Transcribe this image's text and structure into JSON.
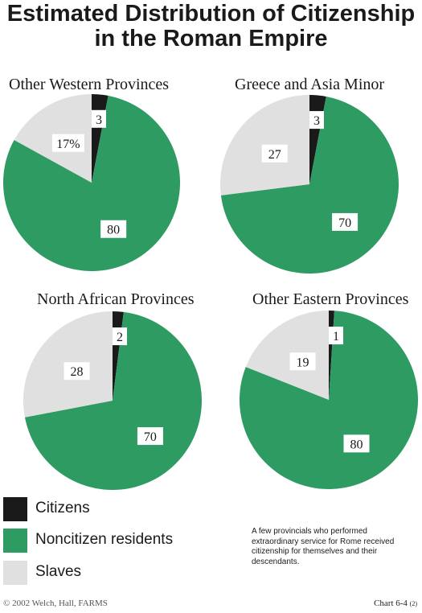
{
  "title": {
    "line1": "Estimated Distribution of Citizenship",
    "line2": "in the Roman Empire"
  },
  "colors": {
    "citizens": "#1a1a1a",
    "noncitizens": "#2e9b62",
    "slaves": "#e0e0e0"
  },
  "chart_data": [
    {
      "type": "pie",
      "title": "Other Western Provinces",
      "labels": [
        "Citizens",
        "Noncitizen residents",
        "Slaves"
      ],
      "values": [
        3,
        80,
        17
      ],
      "data_labels": [
        "3",
        "80",
        "17%"
      ]
    },
    {
      "type": "pie",
      "title": "Greece and Asia Minor",
      "labels": [
        "Citizens",
        "Noncitizen residents",
        "Slaves"
      ],
      "values": [
        3,
        70,
        27
      ],
      "data_labels": [
        "3",
        "70",
        "27"
      ]
    },
    {
      "type": "pie",
      "title": "North African Provinces",
      "labels": [
        "Citizens",
        "Noncitizen residents",
        "Slaves"
      ],
      "values": [
        2,
        70,
        28
      ],
      "data_labels": [
        "2",
        "70",
        "28"
      ]
    },
    {
      "type": "pie",
      "title": "Other Eastern Provinces",
      "labels": [
        "Citizens",
        "Noncitizen residents",
        "Slaves"
      ],
      "values": [
        1,
        80,
        19
      ],
      "data_labels": [
        "1",
        "80",
        "19"
      ]
    }
  ],
  "legend": {
    "items": [
      {
        "label": "Citizens",
        "color": "#1a1a1a"
      },
      {
        "label": "Noncitizen residents",
        "color": "#2e9b62"
      },
      {
        "label": "Slaves",
        "color": "#e0e0e0"
      }
    ]
  },
  "note": "A few provincials who performed extraordinary service for Rome received citizenship for themselves and their descendants.",
  "footer": {
    "copyright": "© 2002 Welch, Hall, FARMS",
    "chart_number": "Chart 6-4",
    "chart_number_suffix": "(2)"
  }
}
